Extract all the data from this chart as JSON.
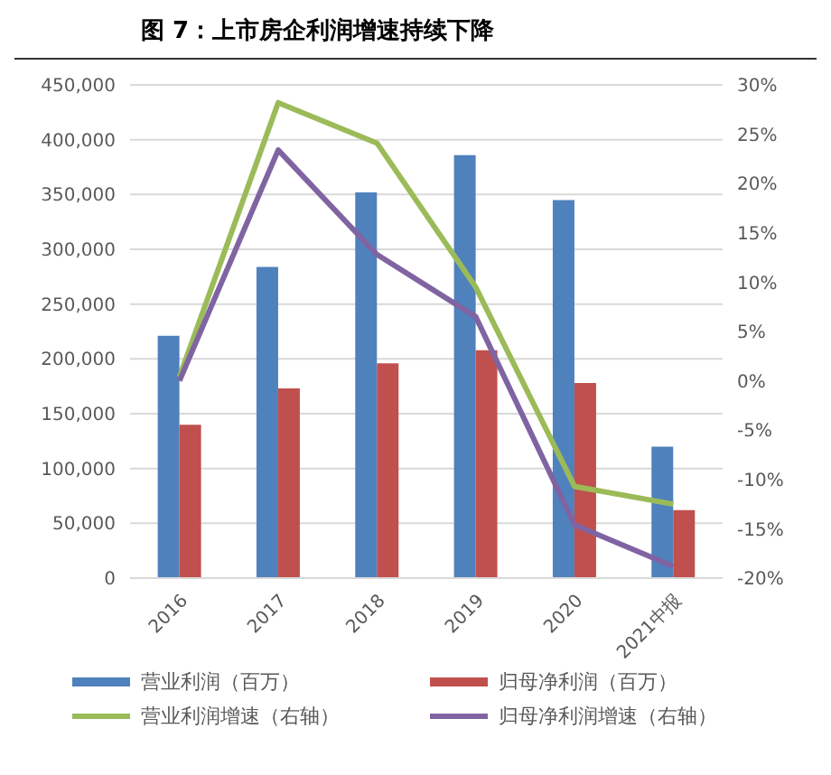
{
  "chart_data": {
    "type": "bar",
    "title": "图 7：上市房企利润增速持续下降",
    "categories": [
      "2016",
      "2017",
      "2018",
      "2019",
      "2020",
      "2021中报"
    ],
    "series": [
      {
        "name": "营业利润（百万）",
        "color": "#4f81bd",
        "values": [
          221000,
          284000,
          352000,
          386000,
          345000,
          120000
        ]
      },
      {
        "name": "归母净利润（百万）",
        "color": "#c0504d",
        "values": [
          140000,
          173000,
          196000,
          208000,
          178000,
          62000
        ]
      },
      {
        "name": "营业利润增速（右轴）",
        "type": "line",
        "axis": "y2",
        "color": "#9bbb59",
        "values": [
          0.4,
          28.2,
          24.1,
          9.5,
          -10.7,
          -12.5
        ]
      },
      {
        "name": "归母净利润增速（右轴）",
        "type": "line",
        "axis": "y2",
        "color": "#8064a2",
        "values": [
          0,
          23.4,
          12.8,
          6.5,
          -14.6,
          -18.8
        ]
      }
    ],
    "ylim": [
      0,
      450000
    ],
    "yticks": [
      {
        "value": 0,
        "label": "0"
      },
      {
        "value": 50000,
        "label": "50,000"
      },
      {
        "value": 100000,
        "label": "100,000"
      },
      {
        "value": 150000,
        "label": "150,000"
      },
      {
        "value": 200000,
        "label": "200,000"
      },
      {
        "value": 250000,
        "label": "250,000"
      },
      {
        "value": 300000,
        "label": "300,000"
      },
      {
        "value": 350000,
        "label": "350,000"
      },
      {
        "value": 400000,
        "label": "400,000"
      },
      {
        "value": 450000,
        "label": "450,000"
      }
    ],
    "y2lim": [
      -20,
      30
    ],
    "y2ticks": [
      {
        "value": -20,
        "label": "-20%"
      },
      {
        "value": -15,
        "label": "-15%"
      },
      {
        "value": -10,
        "label": "-10%"
      },
      {
        "value": -5,
        "label": "-5%"
      },
      {
        "value": 0,
        "label": "0%"
      },
      {
        "value": 5,
        "label": "5%"
      },
      {
        "value": 10,
        "label": "10%"
      },
      {
        "value": 15,
        "label": "15%"
      },
      {
        "value": 20,
        "label": "20%"
      },
      {
        "value": 25,
        "label": "25%"
      },
      {
        "value": 30,
        "label": "30%"
      }
    ],
    "grid": "y",
    "legend": "bottom",
    "marker": "none"
  }
}
